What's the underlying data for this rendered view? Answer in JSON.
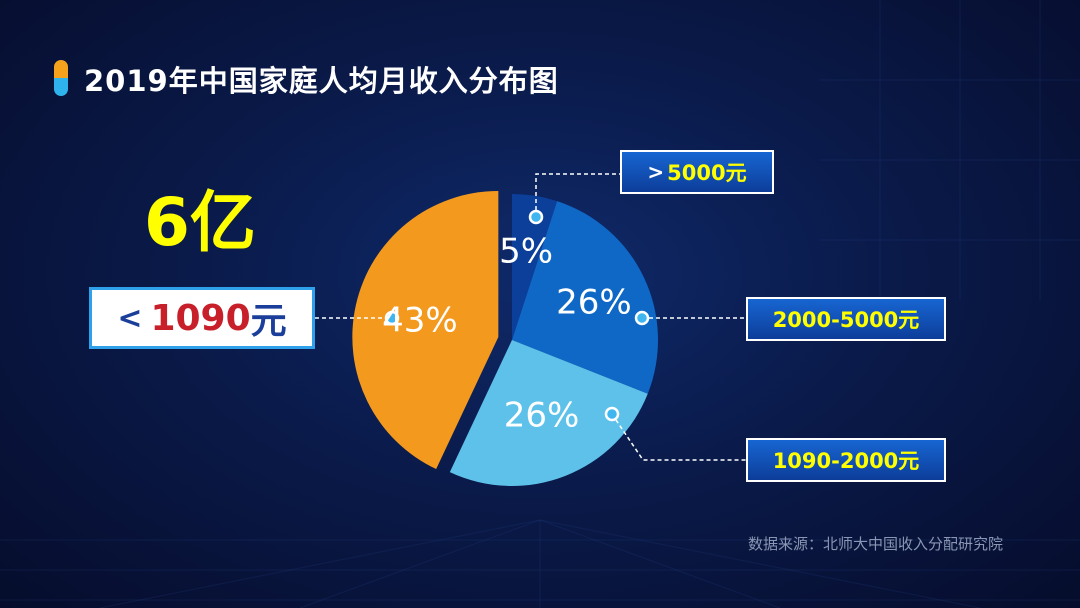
{
  "title": "2019年中国家庭人均月收入分布图",
  "highlight": {
    "big_number": "6亿",
    "lt_symbol": "<",
    "value": "1090",
    "unit": "元"
  },
  "labels": {
    "gt5000": {
      "symbol": ">",
      "text": "5000元"
    },
    "r2000_5000": "2000-5000元",
    "r1090_2000": "1090-2000元"
  },
  "source": "数据来源：北师大中国收入分配研究院",
  "chart_data": {
    "type": "pie",
    "title": "2019年中国家庭人均月收入分布图",
    "categories": [
      "<1090元",
      "1090-2000元",
      "2000-5000元",
      ">5000元"
    ],
    "values": [
      43,
      26,
      26,
      5
    ],
    "value_labels": [
      "43%",
      "26%",
      "26%",
      "5%"
    ],
    "colors": [
      "#f39a1e",
      "#5ec1ea",
      "#0f68c6",
      "#0c3f9a"
    ],
    "annotations": [
      "6亿"
    ]
  }
}
